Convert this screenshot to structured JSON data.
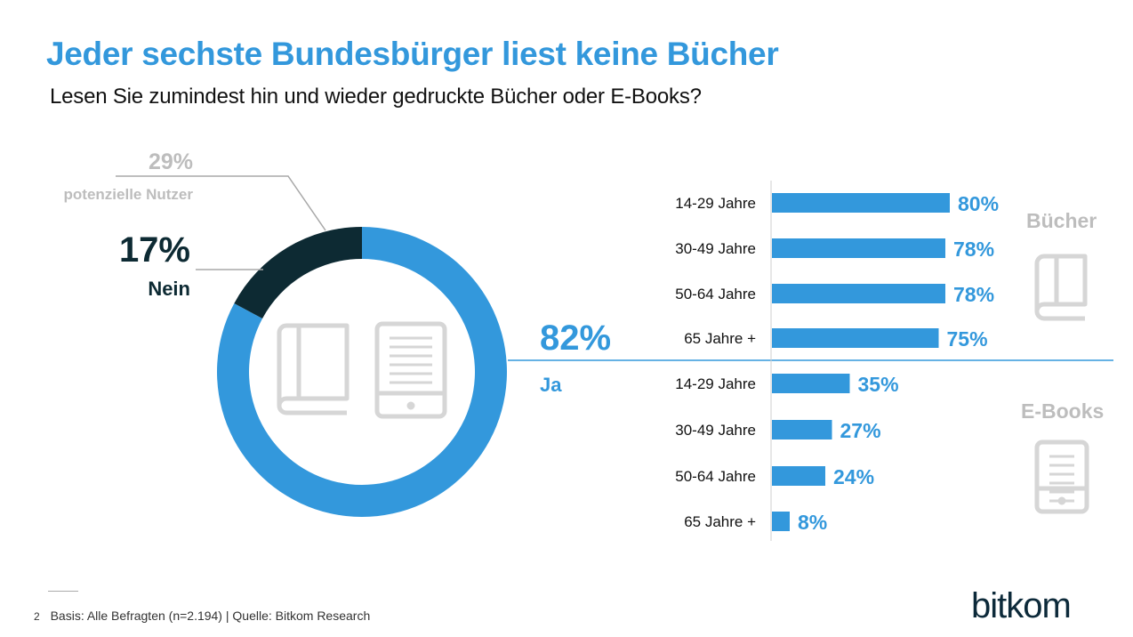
{
  "header": {
    "title": "Jeder sechste Bundesbürger liest keine Bücher",
    "subtitle": "Lesen Sie zumindest hin und wieder gedruckte Bücher oder E-Books?"
  },
  "footer": {
    "page_number": "2",
    "source": "Basis: Alle Befragten (n=2.194) | Quelle: Bitkom Research"
  },
  "logo": {
    "text": "bitkom"
  },
  "colors": {
    "title": "#3398dc",
    "ja": "#3398dc",
    "nein": "#0d2a33",
    "bar": "#3398dc",
    "muted": "#bdbdbd",
    "icon": "#d6d6d6"
  },
  "icons": [
    "book-icon",
    "ebook-reader-icon"
  ],
  "chart_data": [
    {
      "type": "pie",
      "style": "donut",
      "slices": [
        {
          "label": "Ja",
          "value": 82,
          "value_label": "82%"
        },
        {
          "label": "Nein",
          "value": 17,
          "value_label": "17%"
        }
      ],
      "annotation": {
        "value_label": "29%",
        "text": "potenzielle Nutzer"
      }
    },
    {
      "type": "bar",
      "orientation": "horizontal",
      "group_label": "Bücher",
      "categories": [
        "14-29 Jahre",
        "30-49 Jahre",
        "50-64 Jahre",
        "65 Jahre +"
      ],
      "values": [
        80,
        78,
        78,
        75
      ],
      "value_labels": [
        "80%",
        "78%",
        "78%",
        "75%"
      ]
    },
    {
      "type": "bar",
      "orientation": "horizontal",
      "group_label": "E-Books",
      "categories": [
        "14-29 Jahre",
        "30-49 Jahre",
        "50-64 Jahre",
        "65 Jahre +"
      ],
      "values": [
        35,
        27,
        24,
        8
      ],
      "value_labels": [
        "35%",
        "27%",
        "24%",
        "8%"
      ]
    }
  ]
}
